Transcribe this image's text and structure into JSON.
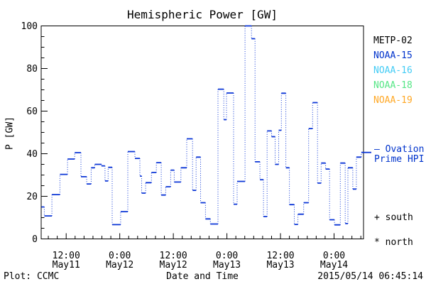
{
  "title": "Hemispheric Power [GW]",
  "axes": {
    "ylabel": "P [GW]",
    "xlabel": "Date and Time",
    "y_ticks": [
      0,
      20,
      40,
      60,
      80,
      100
    ],
    "x_ticks": [
      {
        "t": 12,
        "time": "12:00",
        "date": "May11"
      },
      {
        "t": 24,
        "time": "0:00",
        "date": "May12"
      },
      {
        "t": 36,
        "time": "12:00",
        "date": "May12"
      },
      {
        "t": 48,
        "time": "0:00",
        "date": "May13"
      },
      {
        "t": 60,
        "time": "12:00",
        "date": "May13"
      },
      {
        "t": 72,
        "time": "0:00",
        "date": "May14"
      }
    ]
  },
  "footer": {
    "plot_credit": "Plot: CCMC",
    "timestamp": "2015/05/14 06:45:14"
  },
  "legend": {
    "satellites": [
      {
        "label": "METP-02",
        "color": "#000000"
      },
      {
        "label": "NOAA-15",
        "color": "#0033cc"
      },
      {
        "label": "NOAA-16",
        "color": "#44ccf5"
      },
      {
        "label": "NOAA-18",
        "color": "#55e685"
      },
      {
        "label": "NOAA-19",
        "color": "#ffa826"
      }
    ],
    "ovation": {
      "line1": "— Ovation",
      "line2": "Prime HPI",
      "color": "#0033cc"
    },
    "south_label": "+ south",
    "north_label": "* north"
  },
  "chart_data": {
    "type": "line",
    "style": "steps",
    "title": "Hemispheric Power [GW]",
    "xlabel": "Date and Time",
    "ylabel": "P [GW]",
    "line_color": "#0a35d6",
    "x_unit": "hours after May11 00:00",
    "x_range": [
      6.4,
      78.6
    ],
    "ylim": [
      0,
      100
    ],
    "y_major": 20,
    "y_minor": 5,
    "x_major": 12,
    "x_minor": 2,
    "grid": false,
    "legend_position": "right-outside",
    "edge_marker_gw": 40.6,
    "t_end": 78.6,
    "steps": [
      [
        6.45,
        15.0
      ],
      [
        7.1,
        10.8
      ],
      [
        8.8,
        20.8
      ],
      [
        10.6,
        30.3
      ],
      [
        12.3,
        37.5
      ],
      [
        13.9,
        40.5
      ],
      [
        15.3,
        29.2
      ],
      [
        16.6,
        25.8
      ],
      [
        17.6,
        33.4
      ],
      [
        18.4,
        35.0
      ],
      [
        19.9,
        34.3
      ],
      [
        20.7,
        27.2
      ],
      [
        21.4,
        33.6
      ],
      [
        22.3,
        6.7
      ],
      [
        24.2,
        12.8
      ],
      [
        25.8,
        41.0
      ],
      [
        27.4,
        37.8
      ],
      [
        28.5,
        29.5
      ],
      [
        28.9,
        21.5
      ],
      [
        29.8,
        26.4
      ],
      [
        31.1,
        31.2
      ],
      [
        32.2,
        35.8
      ],
      [
        33.3,
        20.6
      ],
      [
        34.3,
        24.5
      ],
      [
        35.4,
        32.3
      ],
      [
        36.2,
        26.7
      ],
      [
        37.7,
        33.4
      ],
      [
        39.0,
        47.0
      ],
      [
        40.3,
        22.8
      ],
      [
        41.1,
        38.4
      ],
      [
        42.1,
        17.0
      ],
      [
        43.2,
        9.4
      ],
      [
        44.3,
        7.0
      ],
      [
        46.0,
        70.3
      ],
      [
        47.3,
        56.0
      ],
      [
        47.9,
        68.5
      ],
      [
        49.5,
        16.3
      ],
      [
        50.3,
        27.0
      ],
      [
        52.05,
        100.0
      ],
      [
        53.5,
        94.0
      ],
      [
        54.3,
        36.2
      ],
      [
        55.4,
        27.8
      ],
      [
        56.2,
        10.5
      ],
      [
        57.0,
        50.7
      ],
      [
        58.0,
        48.0
      ],
      [
        58.8,
        35.0
      ],
      [
        59.6,
        51.0
      ],
      [
        60.2,
        68.4
      ],
      [
        61.2,
        33.4
      ],
      [
        62.0,
        16.1
      ],
      [
        63.1,
        6.8
      ],
      [
        63.9,
        11.6
      ],
      [
        65.2,
        17.0
      ],
      [
        66.3,
        51.8
      ],
      [
        67.2,
        64.0
      ],
      [
        68.3,
        26.2
      ],
      [
        69.1,
        35.6
      ],
      [
        70.1,
        32.8
      ],
      [
        71.0,
        9.0
      ],
      [
        72.1,
        6.6
      ],
      [
        73.4,
        35.6
      ],
      [
        74.5,
        7.2
      ],
      [
        75.1,
        33.4
      ],
      [
        76.2,
        23.4
      ],
      [
        77.0,
        38.4
      ],
      [
        78.1,
        40.6
      ]
    ]
  }
}
